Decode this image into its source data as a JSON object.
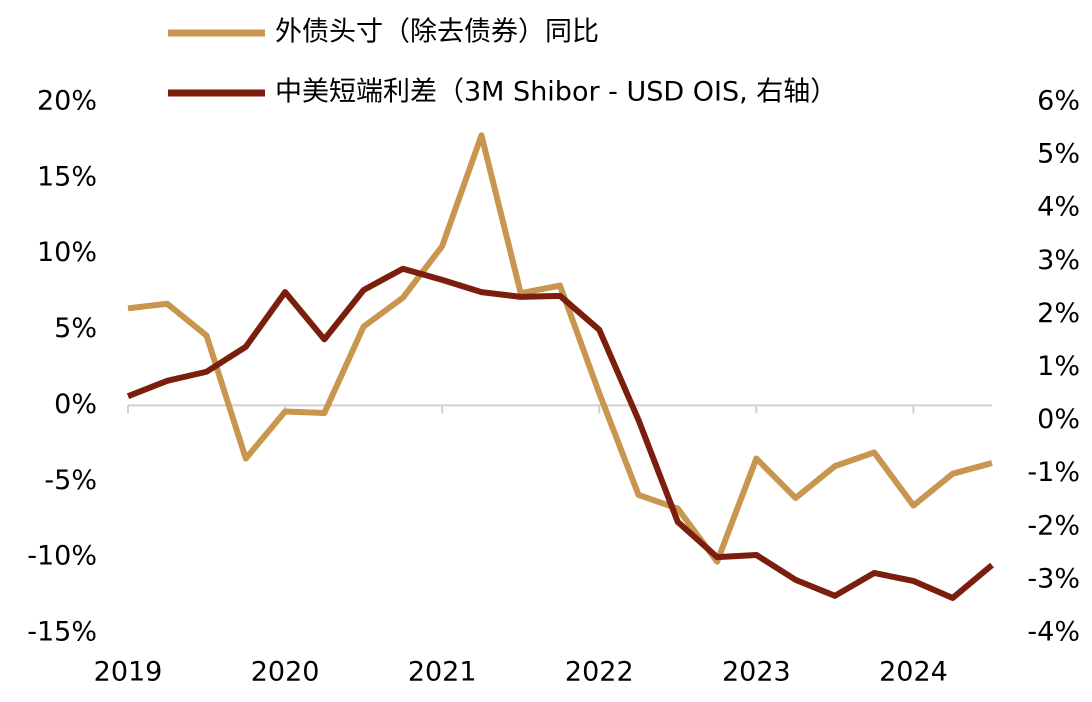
{
  "chart_data": {
    "type": "line",
    "x": [
      2019,
      2019.25,
      2019.5,
      2019.75,
      2020,
      2020.25,
      2020.5,
      2020.75,
      2021,
      2021.25,
      2021.5,
      2021.75,
      2022,
      2022.25,
      2022.5,
      2022.75,
      2023,
      2023.25,
      2023.5,
      2023.75,
      2024,
      2024.25,
      2024.5
    ],
    "series": [
      {
        "name": "外债头寸（除去债券）同比",
        "color": "#c8964e",
        "axis": "y",
        "values": [
          6.4,
          6.7,
          4.6,
          -3.5,
          -0.4,
          -0.5,
          5.2,
          7.1,
          10.5,
          17.8,
          7.4,
          7.9,
          0.8,
          -5.9,
          -6.8,
          -10.3,
          -3.5,
          -6.1,
          -4.0,
          -3.1,
          -6.6,
          -4.5,
          -3.8
        ]
      },
      {
        "name": "中美短端利差（3M Shibor - USD OIS, 右轴）",
        "color": "#7b1e0e",
        "axis": "y2",
        "values": [
          0.46,
          0.75,
          0.92,
          1.39,
          2.42,
          1.53,
          2.46,
          2.86,
          2.65,
          2.42,
          2.33,
          2.35,
          1.71,
          0.01,
          -1.91,
          -2.57,
          -2.53,
          -3.0,
          -3.3,
          -2.87,
          -3.02,
          -3.34,
          -2.72
        ]
      }
    ],
    "xlim": [
      2019,
      2024.5
    ],
    "xticks": [
      2019,
      2020,
      2021,
      2022,
      2023,
      2024
    ],
    "ylim": [
      -15,
      20
    ],
    "yticks": [
      {
        "value": -15,
        "label": "-15%"
      },
      {
        "value": -10,
        "label": "-10%"
      },
      {
        "value": -5,
        "label": "-5%"
      },
      {
        "value": 0,
        "label": "0%"
      },
      {
        "value": 5,
        "label": "5%"
      },
      {
        "value": 10,
        "label": "10%"
      },
      {
        "value": 15,
        "label": "15%"
      },
      {
        "value": 20,
        "label": "20%"
      }
    ],
    "y2lim": [
      -4,
      6
    ],
    "y2ticks": [
      {
        "value": -4,
        "label": "-4%"
      },
      {
        "value": -3,
        "label": "-3%"
      },
      {
        "value": -2,
        "label": "-2%"
      },
      {
        "value": -1,
        "label": "-1%"
      },
      {
        "value": 0,
        "label": "0%"
      },
      {
        "value": 1,
        "label": "1%"
      },
      {
        "value": 2,
        "label": "2%"
      },
      {
        "value": 3,
        "label": "3%"
      },
      {
        "value": 4,
        "label": "4%"
      },
      {
        "value": 5,
        "label": "5%"
      },
      {
        "value": 6,
        "label": "6%"
      }
    ],
    "legend": "top-left"
  }
}
